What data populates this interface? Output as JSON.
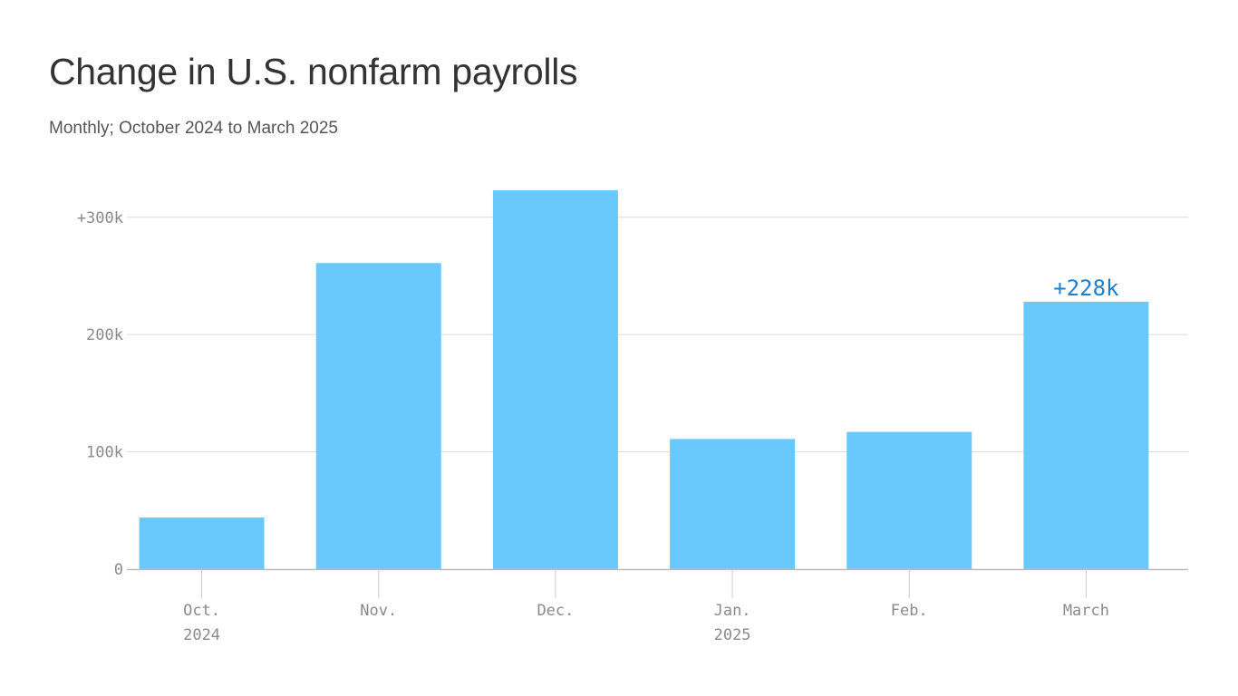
{
  "chart_data": {
    "type": "bar",
    "title": "Change in U.S. nonfarm payrolls",
    "subtitle": "Monthly; October 2024 to March 2025",
    "categories": [
      "Oct.",
      "Nov.",
      "Dec.",
      "Jan.",
      "Feb.",
      "March"
    ],
    "year_labels": [
      "2024",
      "",
      "",
      "2025",
      "",
      ""
    ],
    "values": [
      44,
      261,
      323,
      111,
      117,
      228
    ],
    "unit": "k",
    "ylim": [
      0,
      323
    ],
    "yticks": [
      0,
      100,
      200,
      300
    ],
    "ytick_labels": [
      "0",
      "100k",
      "200k",
      "+300k"
    ],
    "annotations": [
      {
        "category": "March",
        "text": "+228k"
      }
    ],
    "grid": true,
    "colors": {
      "bar": "#69c9fd",
      "annotation": "#1a7fd6",
      "grid": "#dcdcdc",
      "axis": "#bbbbbb"
    }
  }
}
